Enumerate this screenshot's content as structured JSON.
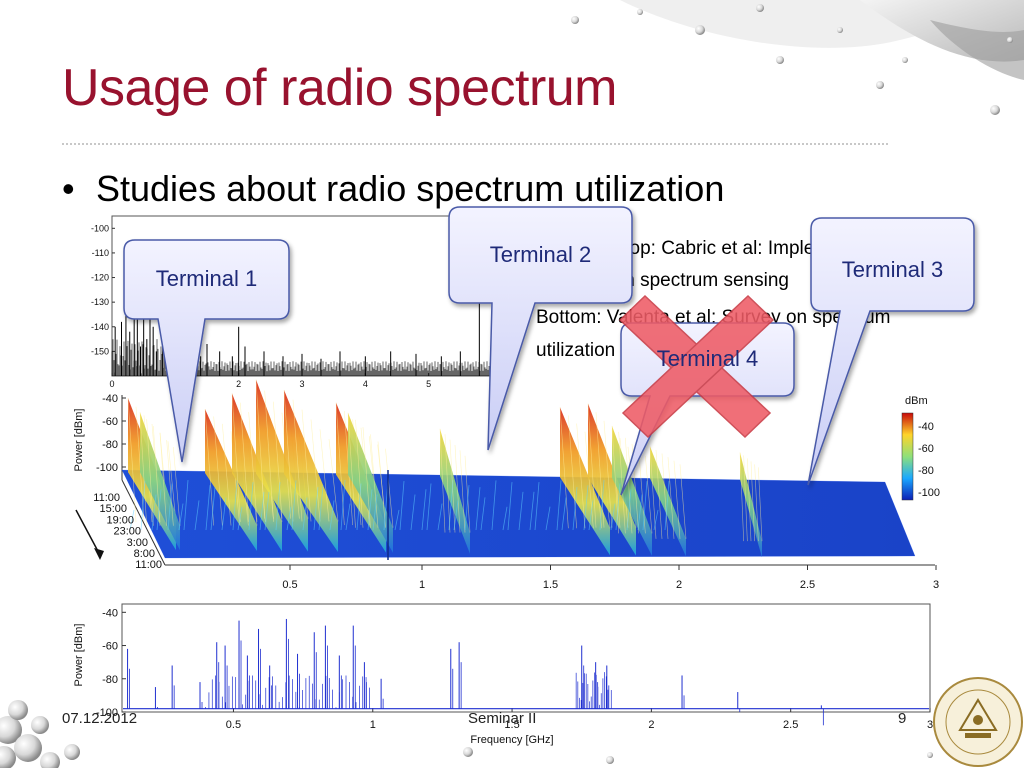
{
  "slide": {
    "title": "Usage of radio spectrum",
    "bullet": "Studies about radio spectrum utilization",
    "bullet_marker": "•",
    "caption_lines": [
      "Top: Cabric et al: Implementation issues",
      "in spectrum sensing",
      "Bottom: Valenta et al: Survey on spectrum",
      "utilization"
    ],
    "callouts": {
      "terminal_1": "Terminal 1",
      "terminal_2": "Terminal 2",
      "terminal_3": "Terminal 3",
      "terminal_4": "Terminal  4"
    },
    "footer": {
      "date": "07.12.2012",
      "center": "Seminar II",
      "page": "9"
    },
    "colors": {
      "title": "#98122e",
      "callout_fill_top": "#f3f3ff",
      "callout_fill_bottom": "#c9cdf5",
      "callout_stroke": "#4a5aa8",
      "cross": "#ee5c66"
    },
    "icons": {
      "logo": "university-seal",
      "decoration": "spheres"
    }
  },
  "chart_data": [
    {
      "type": "line",
      "name": "top-spectrum",
      "yticks": [
        "-100",
        "-110",
        "-120",
        "-130",
        "-140",
        "-150"
      ],
      "xticks": [
        "0",
        "1",
        "2",
        "3",
        "4",
        "5",
        "6"
      ],
      "ylim": [
        -160,
        -95
      ],
      "xlim": [
        0,
        6
      ],
      "bars": [
        [
          0.05,
          -140
        ],
        [
          0.15,
          -138
        ],
        [
          0.22,
          -125
        ],
        [
          0.28,
          -142
        ],
        [
          0.35,
          -135
        ],
        [
          0.4,
          -120
        ],
        [
          0.45,
          -148
        ],
        [
          0.5,
          -130
        ],
        [
          0.55,
          -145
        ],
        [
          0.6,
          -128
        ],
        [
          0.65,
          -140
        ],
        [
          0.7,
          -150
        ],
        [
          0.8,
          -145
        ],
        [
          0.95,
          -152
        ],
        [
          1.1,
          -148
        ],
        [
          1.25,
          -150
        ],
        [
          1.4,
          -152
        ],
        [
          1.5,
          -147
        ],
        [
          1.7,
          -150
        ],
        [
          1.9,
          -152
        ],
        [
          2.0,
          -140
        ],
        [
          2.1,
          -148
        ],
        [
          2.4,
          -150
        ],
        [
          2.7,
          -152
        ],
        [
          3.0,
          -151
        ],
        [
          3.3,
          -153
        ],
        [
          3.6,
          -150
        ],
        [
          4.0,
          -152
        ],
        [
          4.4,
          -150
        ],
        [
          4.8,
          -151
        ],
        [
          5.2,
          -152
        ],
        [
          5.5,
          -150
        ],
        [
          5.8,
          -130
        ]
      ]
    },
    {
      "type": "heatmap",
      "name": "waterfall",
      "xticks": [
        "0.5",
        "1",
        "1.5",
        "2",
        "2.5",
        "3"
      ],
      "yticks": [
        "-40",
        "-60",
        "-80",
        "-100"
      ],
      "ylabel": "Power [dBm]",
      "time_ticks": [
        "11:00",
        "15:00",
        "19:00",
        "23:00",
        "3:00",
        "8:00",
        "11:00"
      ],
      "colorbar_title": "dBm",
      "colorbar_ticks": [
        "-40",
        "-60",
        "-80",
        "-100"
      ]
    },
    {
      "type": "line",
      "name": "bottom-spectrum",
      "ylabel": "Power [dBm]",
      "xlabel": "Frequency [GHz]",
      "yticks": [
        "-40",
        "-60",
        "-80",
        "-100"
      ],
      "xticks": [
        "0.5",
        "1",
        "1.5",
        "2",
        "2.5",
        "3"
      ],
      "xlim": [
        0.1,
        3.0
      ],
      "ylim": [
        -100,
        -35
      ],
      "peaks": [
        [
          0.12,
          -62
        ],
        [
          0.22,
          -85
        ],
        [
          0.28,
          -72
        ],
        [
          0.38,
          -82
        ],
        [
          0.44,
          -58
        ],
        [
          0.47,
          -60
        ],
        [
          0.52,
          -45
        ],
        [
          0.55,
          -66
        ],
        [
          0.59,
          -50
        ],
        [
          0.63,
          -72
        ],
        [
          0.69,
          -44
        ],
        [
          0.73,
          -65
        ],
        [
          0.79,
          -52
        ],
        [
          0.83,
          -48
        ],
        [
          0.88,
          -66
        ],
        [
          0.93,
          -48
        ],
        [
          0.97,
          -70
        ],
        [
          1.03,
          -80
        ],
        [
          1.28,
          -62
        ],
        [
          1.31,
          -58
        ],
        [
          1.75,
          -60
        ],
        [
          1.8,
          -70
        ],
        [
          1.84,
          -72
        ],
        [
          2.11,
          -78
        ],
        [
          2.31,
          -88
        ],
        [
          2.61,
          -96
        ]
      ]
    }
  ]
}
